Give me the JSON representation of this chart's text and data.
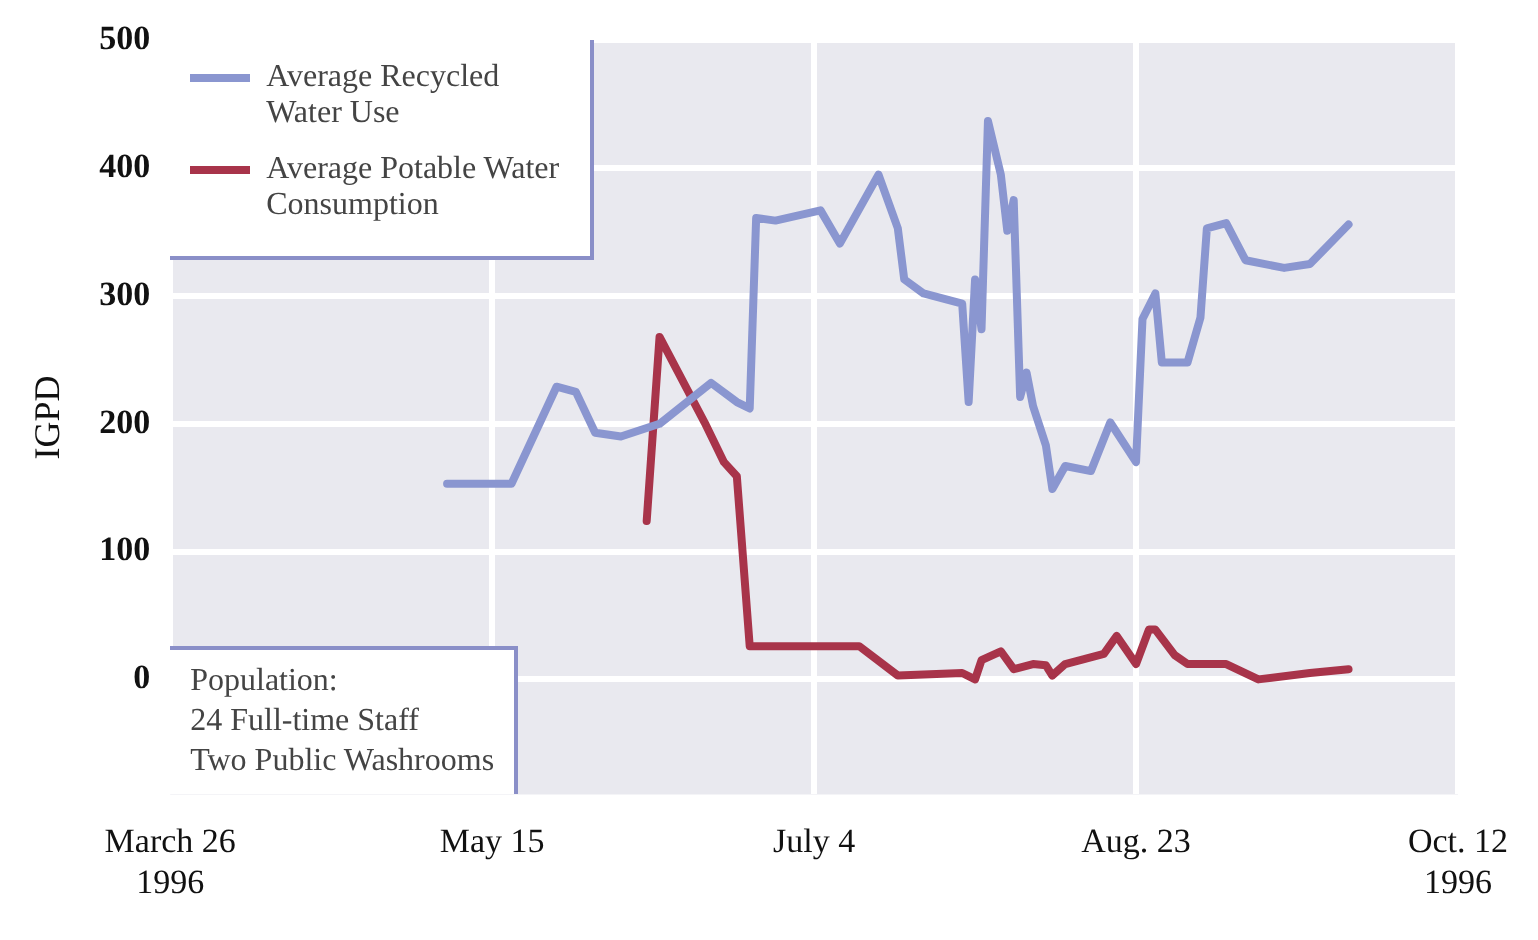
{
  "chart_data": {
    "type": "line",
    "ylabel": "IGPD",
    "ylim": [
      -90,
      500
    ],
    "yticks": [
      0,
      100,
      200,
      300,
      400,
      500
    ],
    "xlim": [
      "1996-03-26",
      "1996-10-12"
    ],
    "xticks": [
      {
        "value": "1996-03-26",
        "label": "March 26\n1996"
      },
      {
        "value": "1996-05-15",
        "label": "May 15"
      },
      {
        "value": "1996-07-04",
        "label": "July 4"
      },
      {
        "value": "1996-08-23",
        "label": "Aug. 23"
      },
      {
        "value": "1996-10-12",
        "label": "Oct. 12\n1996"
      }
    ],
    "grid": true,
    "legend": "top left",
    "marker": "none",
    "line_style": "solid",
    "annotations": [
      "Population:\n24 Full-time Staff\nTwo Public Washrooms"
    ],
    "series": [
      {
        "name": "Average Recycled Water Use",
        "color": "#8a96d0",
        "x": [
          "1996-05-08",
          "1996-05-18",
          "1996-05-25",
          "1996-05-28",
          "1996-05-31",
          "1996-06-04",
          "1996-06-10",
          "1996-06-18",
          "1996-06-22",
          "1996-06-24",
          "1996-06-25",
          "1996-06-28",
          "1996-07-05",
          "1996-07-08",
          "1996-07-14",
          "1996-07-17",
          "1996-07-18",
          "1996-07-21",
          "1996-07-27",
          "1996-07-28",
          "1996-07-29",
          "1996-07-30",
          "1996-07-31",
          "1996-08-02",
          "1996-08-03",
          "1996-08-04",
          "1996-08-05",
          "1996-08-06",
          "1996-08-07",
          "1996-08-09",
          "1996-08-10",
          "1996-08-12",
          "1996-08-16",
          "1996-08-19",
          "1996-08-23",
          "1996-08-24",
          "1996-08-26",
          "1996-08-27",
          "1996-08-31",
          "1996-09-02",
          "1996-09-03",
          "1996-09-06",
          "1996-09-09",
          "1996-09-15",
          "1996-09-19",
          "1996-09-25"
        ],
        "values": [
          153,
          153,
          229,
          225,
          193,
          190,
          200,
          232,
          217,
          212,
          361,
          359,
          367,
          341,
          395,
          353,
          313,
          302,
          294,
          217,
          313,
          274,
          437,
          395,
          351,
          375,
          221,
          240,
          214,
          183,
          149,
          167,
          163,
          201,
          170,
          282,
          302,
          248,
          248,
          283,
          353,
          357,
          328,
          322,
          325,
          356
        ]
      },
      {
        "name": "Average Potable Water Consumption",
        "color": "#a8344a",
        "x": [
          "1996-06-08",
          "1996-06-10",
          "1996-06-17",
          "1996-06-20",
          "1996-06-22",
          "1996-06-24",
          "1996-07-11",
          "1996-07-17",
          "1996-07-27",
          "1996-07-29",
          "1996-07-30",
          "1996-08-02",
          "1996-08-04",
          "1996-08-07",
          "1996-08-09",
          "1996-08-10",
          "1996-08-12",
          "1996-08-18",
          "1996-08-20",
          "1996-08-23",
          "1996-08-25",
          "1996-08-26",
          "1996-08-29",
          "1996-08-31",
          "1996-09-06",
          "1996-09-11",
          "1996-09-19",
          "1996-09-25"
        ],
        "values": [
          124,
          268,
          201,
          170,
          159,
          26,
          26,
          3,
          5,
          0,
          15,
          22,
          8,
          12,
          11,
          3,
          12,
          20,
          34,
          12,
          39,
          39,
          19,
          12,
          12,
          0,
          5,
          8
        ]
      }
    ]
  }
}
